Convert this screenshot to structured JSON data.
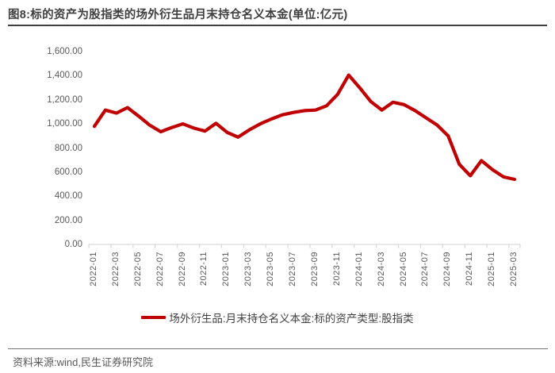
{
  "title": "图8:标的资产为股指类的场外衍生品月末持仓名义本金(单位:亿元)",
  "source_note": "资料来源:wind,民生证券研究院",
  "legend_label": "场外衍生品:月末持仓名义本金:标的资产类型:股指类",
  "colors": {
    "line": "#C00000",
    "title_text": "#3F3F3F",
    "axis_label_text": "#595959",
    "axis_line": "#D9D9D9"
  },
  "chart_data": {
    "type": "line",
    "title": "标的资产为股指类的场外衍生品月末持仓名义本金",
    "unit": "亿元",
    "x": [
      "2022-01",
      "2022-02",
      "2022-03",
      "2022-04",
      "2022-05",
      "2022-06",
      "2022-07",
      "2022-08",
      "2022-09",
      "2022-10",
      "2022-11",
      "2022-12",
      "2023-01",
      "2023-02",
      "2023-03",
      "2023-04",
      "2023-05",
      "2023-06",
      "2023-07",
      "2023-08",
      "2023-09",
      "2023-10",
      "2023-11",
      "2023-12",
      "2024-01",
      "2024-02",
      "2024-03",
      "2024-04",
      "2024-05",
      "2024-06",
      "2024-07",
      "2024-08",
      "2024-09",
      "2024-10",
      "2024-11",
      "2024-12",
      "2025-01",
      "2025-02",
      "2025-03"
    ],
    "series": [
      {
        "name": "场外衍生品:月末持仓名义本金:标的资产类型:股指类",
        "color": "#C00000",
        "values": [
          980,
          1115,
          1090,
          1135,
          1065,
          990,
          935,
          970,
          1000,
          965,
          940,
          1005,
          930,
          890,
          950,
          1000,
          1040,
          1075,
          1095,
          1110,
          1115,
          1150,
          1245,
          1405,
          1300,
          1185,
          1115,
          1180,
          1160,
          1110,
          1050,
          990,
          900,
          665,
          570,
          695,
          620,
          560,
          540
        ]
      }
    ],
    "ylim": [
      0,
      1600
    ],
    "ytick_step": 200,
    "ytick_labels": [
      "0.00",
      "200.00",
      "400.00",
      "600.00",
      "800.00",
      "1,000.00",
      "1,200.00",
      "1,400.00",
      "1,600.00"
    ],
    "xtick_label_every": 2,
    "grid": false,
    "legend_position": "bottom"
  }
}
